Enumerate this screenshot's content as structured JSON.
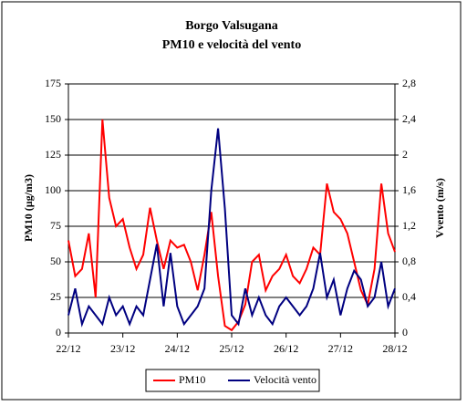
{
  "chart_data": {
    "type": "line",
    "title": "Borgo Valsugana",
    "subtitle": "PM10 e velocità del vento",
    "y_label": "PM10 (µg/m3)",
    "y2_label": "Vvento (m/s)",
    "x": [
      0,
      3,
      6,
      9,
      12,
      15,
      18,
      21,
      24,
      27,
      30,
      33,
      36,
      39,
      42,
      45,
      48,
      51,
      54,
      57,
      60,
      63,
      66,
      69,
      72,
      75,
      78,
      81,
      84,
      87,
      90,
      93,
      96,
      99,
      102,
      105,
      108,
      111,
      114,
      117,
      120,
      123,
      126,
      129,
      132,
      135,
      138,
      141,
      144
    ],
    "xlim": [
      0,
      144
    ],
    "xticks": [
      {
        "value": 0,
        "label": "22/12"
      },
      {
        "value": 24,
        "label": "23/12"
      },
      {
        "value": 48,
        "label": "24/12"
      },
      {
        "value": 72,
        "label": "25/12"
      },
      {
        "value": 96,
        "label": "26/12"
      },
      {
        "value": 120,
        "label": "27/12"
      },
      {
        "value": 144,
        "label": "28/12"
      }
    ],
    "ylim": [
      0,
      175
    ],
    "yticks": [
      0,
      25,
      50,
      75,
      100,
      125,
      150,
      175
    ],
    "y2lim": [
      0,
      2.8
    ],
    "y2ticks": [
      0,
      {
        "value": 0.4,
        "label": "0,4"
      },
      {
        "value": 0.8,
        "label": "0,8"
      },
      {
        "value": 1.2,
        "label": "1,2"
      },
      {
        "value": 1.6,
        "label": "1,6"
      },
      {
        "value": 2,
        "label": "2"
      },
      {
        "value": 2.4,
        "label": "2,4"
      },
      {
        "value": 2.8,
        "label": "2,8"
      }
    ],
    "grid": true,
    "legend": "bottom",
    "series": [
      {
        "name": "PM10",
        "color": "#ff0000",
        "values": [
          65,
          40,
          45,
          70,
          25,
          150,
          95,
          75,
          80,
          60,
          45,
          55,
          88,
          65,
          45,
          65,
          60,
          62,
          50,
          30,
          55,
          85,
          40,
          5,
          2,
          8,
          20,
          50,
          55,
          30,
          40,
          45,
          55,
          40,
          35,
          45,
          60,
          55,
          105,
          85,
          80,
          70,
          50,
          30,
          20,
          45,
          105,
          70,
          57
        ]
      },
      {
        "name": "Velocità vento",
        "color": "#000080",
        "axis": "y2",
        "values": [
          0.2,
          0.5,
          0.1,
          0.3,
          0.2,
          0.1,
          0.4,
          0.2,
          0.3,
          0.1,
          0.3,
          0.2,
          0.6,
          1.0,
          0.3,
          0.9,
          0.3,
          0.1,
          0.2,
          0.3,
          0.5,
          1.6,
          2.3,
          1.4,
          0.2,
          0.1,
          0.5,
          0.2,
          0.4,
          0.2,
          0.1,
          0.3,
          0.4,
          0.3,
          0.2,
          0.3,
          0.5,
          0.9,
          0.4,
          0.6,
          0.2,
          0.5,
          0.7,
          0.6,
          0.3,
          0.4,
          0.8,
          0.3,
          0.5
        ]
      }
    ]
  }
}
